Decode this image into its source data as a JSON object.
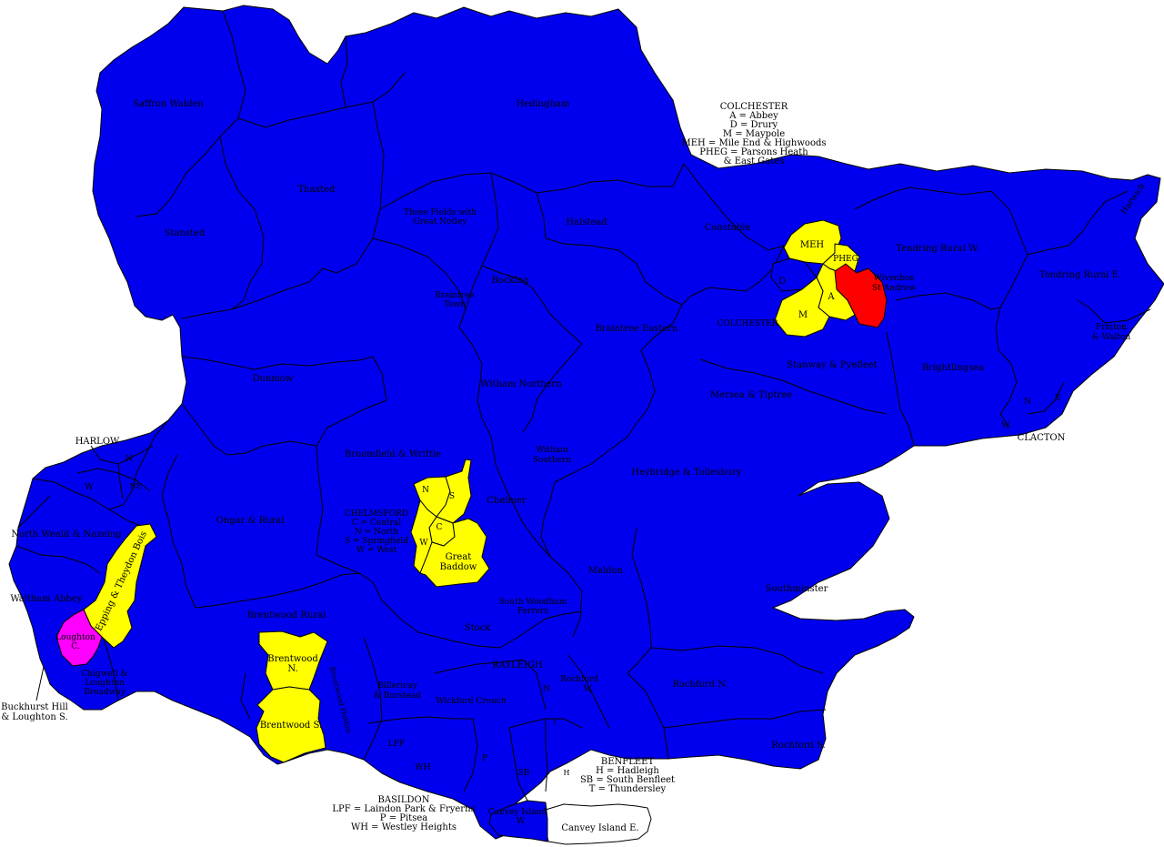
{
  "colors": {
    "blue": "#0000ee",
    "yellow": "#ffff00",
    "red": "#ff0000",
    "magenta": "#ff00ff",
    "white": "#ffffff",
    "border": "#000000"
  },
  "wards": {
    "saffron_walden": "Saffron Walden",
    "thaxted": "Thaxted",
    "stansted": "Stansted",
    "hedingham": "Hedingham",
    "three_fields": "Three Fields with",
    "three_fields_2": "Great Notley",
    "halstead": "Halstead",
    "constable": "Constable",
    "tendring_rural_w": "Tendring Rural W.",
    "tendring_rural_e": "Tendring Rural E.",
    "harwich": "Harwich",
    "bocking": "Bocking",
    "braintree_town": "Braintree",
    "braintree_town_2": "Town",
    "braintree_eastern": "Braintree Eastern",
    "dunmow": "Dunmow",
    "witham_northern": "Witham Northern",
    "stanway": "Stanway & Pyefleet",
    "mersea": "Mersea & Tiptree",
    "brightlingsea": "Brightlingsea",
    "frinton": "Frinton",
    "frinton_2": "& Walton",
    "harlow": "HARLOW",
    "harlow_n": "N",
    "harlow_w": "W",
    "harlow_ne": "NE",
    "broomfield": "Broomfield & Writtle",
    "witham_southern": "Witham",
    "witham_southern_2": "Southern",
    "heybridge": "Heybridge & Tollesbury",
    "clacton": "CLACTON",
    "clacton_n": "N",
    "clacton_e": "E",
    "clacton_w": "W",
    "north_weald": "North Weald & Nazeing",
    "ongar": "Ongar & Rural",
    "chelmer": "Chelmer",
    "maldon": "Maldon",
    "southminster": "Southminster",
    "waltham_abbey": "Waltham Abbey",
    "epping": "Epping & Theydon Bois",
    "brentwood_rural": "Brentwood Rural",
    "south_woodham": "South Woodham",
    "south_woodham_2": "Ferrers",
    "stock": "Stock",
    "loughton": "Loughton",
    "loughton_2": "C.",
    "chigwell": "Chigwell &",
    "chigwell_2": "Loughton",
    "chigwell_3": "Broadway",
    "brentwood_n": "Brentwood",
    "brentwood_n_2": "N.",
    "brentwood_s": "Brentwood S.",
    "brentwood_hutton": "Brentwood Hutton",
    "billericay": "Billericay",
    "billericay_2": "& Burstead",
    "wickford": "Wickford Crouch",
    "rayleigh": "RAYLEIGH",
    "rayleigh_n": "N",
    "rochford_w": "Rochford",
    "rochford_w_2": "W.",
    "rochford_n": "Rochford N.",
    "rochford_s": "Rochford S.",
    "buckhurst": "Buckhurst Hill",
    "buckhurst_2": "& Loughton S.",
    "lpf": "LPF",
    "wh": "WH",
    "p": "P",
    "sb": "SB",
    "h": "H",
    "t": "T",
    "canvey_w": "Canvey Island",
    "canvey_w_2": "W.",
    "canvey_e": "Canvey Island E.",
    "wivenhoe": "Wivenhoe",
    "wivenhoe_2": "St Andrew",
    "colchester": "COLCHESTER",
    "meh": "MEH",
    "pheg": "PHEG",
    "col_a": "A",
    "col_d": "D",
    "col_m": "M",
    "great_baddow": "Great",
    "great_baddow_2": "Baddow",
    "chelm_n": "N",
    "chelm_s": "S",
    "chelm_c": "C",
    "chelm_w": "W"
  },
  "legends": {
    "colchester": [
      "COLCHESTER",
      "A = Abbey",
      "D = Drury",
      "M = Maypole",
      "MEH = Mile End & Highwoods",
      "PHEG = Parsons Heath",
      "& East Gates"
    ],
    "chelmsford": [
      "CHELMSFORD",
      "C = Central",
      "N = North",
      "S = Springfield",
      "W = West"
    ],
    "benfleet": [
      "BENFLEET",
      "H = Hadleigh",
      "SB = South Benfleet",
      "T = Thundersley"
    ],
    "basildon": [
      "BASILDON",
      "LPF = Laindon Park & Fryerns",
      "P = Pitsea",
      "WH = Westley Heights"
    ]
  }
}
